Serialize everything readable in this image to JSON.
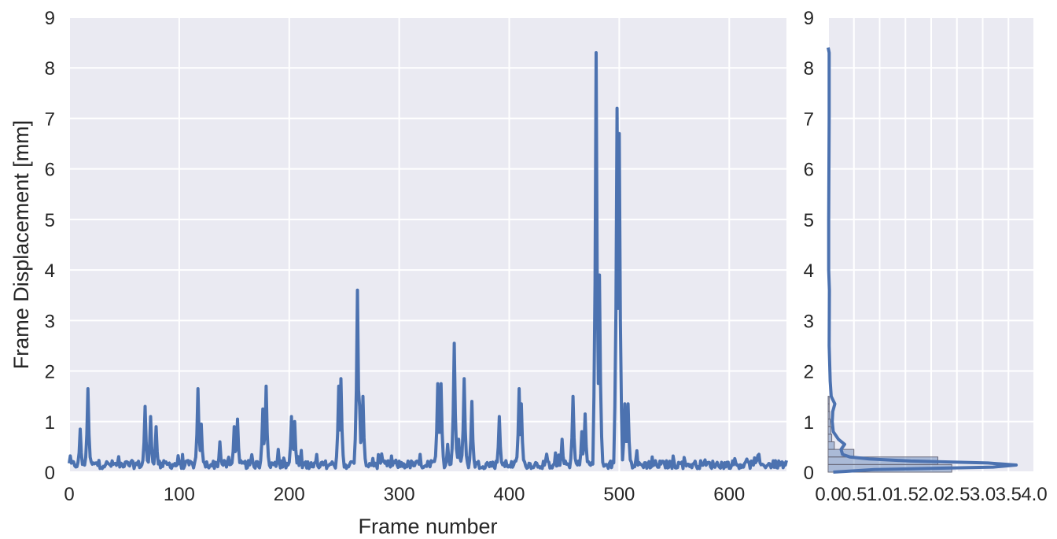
{
  "chart_data": [
    {
      "type": "line",
      "xlabel": "Frame number",
      "ylabel": "Frame Displacement [mm]",
      "xlim": [
        0,
        652
      ],
      "ylim": [
        0,
        9
      ],
      "xticks": [
        "0",
        "100",
        "200",
        "300",
        "400",
        "500",
        "600"
      ],
      "yticks": [
        "0",
        "1",
        "2",
        "3",
        "4",
        "5",
        "6",
        "7",
        "8",
        "9"
      ],
      "grid": true,
      "background": "#eaeaf2",
      "line_color": "#4c72b0",
      "baseline": 0.15,
      "peaks": [
        {
          "x": 10,
          "y": 0.85
        },
        {
          "x": 17,
          "y": 1.65
        },
        {
          "x": 69,
          "y": 1.3
        },
        {
          "x": 74,
          "y": 1.1
        },
        {
          "x": 79,
          "y": 0.9
        },
        {
          "x": 117,
          "y": 1.65
        },
        {
          "x": 120,
          "y": 0.95
        },
        {
          "x": 137,
          "y": 0.6
        },
        {
          "x": 150,
          "y": 0.9
        },
        {
          "x": 153,
          "y": 1.05
        },
        {
          "x": 176,
          "y": 1.25
        },
        {
          "x": 179,
          "y": 1.7
        },
        {
          "x": 190,
          "y": 0.45
        },
        {
          "x": 202,
          "y": 1.1
        },
        {
          "x": 205,
          "y": 1.0
        },
        {
          "x": 245,
          "y": 1.7
        },
        {
          "x": 247,
          "y": 1.85
        },
        {
          "x": 262,
          "y": 3.6
        },
        {
          "x": 264,
          "y": 1.3
        },
        {
          "x": 267,
          "y": 1.5
        },
        {
          "x": 335,
          "y": 1.75
        },
        {
          "x": 338,
          "y": 1.75
        },
        {
          "x": 344,
          "y": 0.55
        },
        {
          "x": 350,
          "y": 2.55
        },
        {
          "x": 354,
          "y": 0.65
        },
        {
          "x": 359,
          "y": 1.85
        },
        {
          "x": 366,
          "y": 1.4
        },
        {
          "x": 391,
          "y": 1.1
        },
        {
          "x": 409,
          "y": 1.65
        },
        {
          "x": 411,
          "y": 1.35
        },
        {
          "x": 448,
          "y": 0.65
        },
        {
          "x": 458,
          "y": 1.5
        },
        {
          "x": 466,
          "y": 0.8
        },
        {
          "x": 469,
          "y": 1.15
        },
        {
          "x": 479,
          "y": 8.3
        },
        {
          "x": 482,
          "y": 3.9
        },
        {
          "x": 498,
          "y": 7.2
        },
        {
          "x": 500,
          "y": 6.7
        },
        {
          "x": 505,
          "y": 1.35
        },
        {
          "x": 508,
          "y": 1.35
        }
      ]
    },
    {
      "type": "histogram",
      "ylim": [
        0,
        9
      ],
      "xlim": [
        0,
        4
      ],
      "xticks": [
        "0.0",
        "0.5",
        "1.0",
        "1.5",
        "2.0",
        "2.5",
        "3.0",
        "3.5",
        "4.0"
      ],
      "yticks": [
        "0",
        "1",
        "2",
        "3",
        "4",
        "5",
        "6",
        "7",
        "8",
        "9"
      ],
      "grid": true,
      "bar_color": "#4c72b0",
      "bins": [
        {
          "y0": 0.0,
          "y1": 0.15,
          "density": 2.4
        },
        {
          "y0": 0.15,
          "y1": 0.3,
          "density": 2.13
        },
        {
          "y0": 0.3,
          "y1": 0.45,
          "density": 0.5
        },
        {
          "y0": 0.45,
          "y1": 0.6,
          "density": 0.12
        },
        {
          "y0": 0.6,
          "y1": 0.75,
          "density": 0.07
        },
        {
          "y0": 0.75,
          "y1": 0.9,
          "density": 0.05
        },
        {
          "y0": 0.9,
          "y1": 1.05,
          "density": 0.04
        },
        {
          "y0": 1.05,
          "y1": 1.2,
          "density": 0.03
        },
        {
          "y0": 1.2,
          "y1": 1.35,
          "density": 0.02
        },
        {
          "y0": 1.35,
          "y1": 1.5,
          "density": 0.02
        }
      ],
      "kde": [
        {
          "y": 0.0,
          "d": 0.1
        },
        {
          "y": 0.05,
          "d": 0.9
        },
        {
          "y": 0.1,
          "d": 3.2
        },
        {
          "y": 0.14,
          "d": 3.65
        },
        {
          "y": 0.18,
          "d": 3.1
        },
        {
          "y": 0.22,
          "d": 1.6
        },
        {
          "y": 0.26,
          "d": 0.8
        },
        {
          "y": 0.3,
          "d": 0.42
        },
        {
          "y": 0.35,
          "d": 0.28
        },
        {
          "y": 0.45,
          "d": 0.25
        },
        {
          "y": 0.55,
          "d": 0.32
        },
        {
          "y": 0.65,
          "d": 0.2
        },
        {
          "y": 0.8,
          "d": 0.1
        },
        {
          "y": 1.0,
          "d": 0.08
        },
        {
          "y": 1.2,
          "d": 0.09
        },
        {
          "y": 1.35,
          "d": 0.13
        },
        {
          "y": 1.5,
          "d": 0.06
        },
        {
          "y": 1.8,
          "d": 0.04
        },
        {
          "y": 2.5,
          "d": 0.02
        },
        {
          "y": 3.6,
          "d": 0.025
        },
        {
          "y": 4.0,
          "d": 0.01
        },
        {
          "y": 5.0,
          "d": 0.01
        },
        {
          "y": 7.0,
          "d": 0.02
        },
        {
          "y": 8.3,
          "d": 0.02
        },
        {
          "y": 8.4,
          "d": 0.0
        }
      ]
    }
  ]
}
